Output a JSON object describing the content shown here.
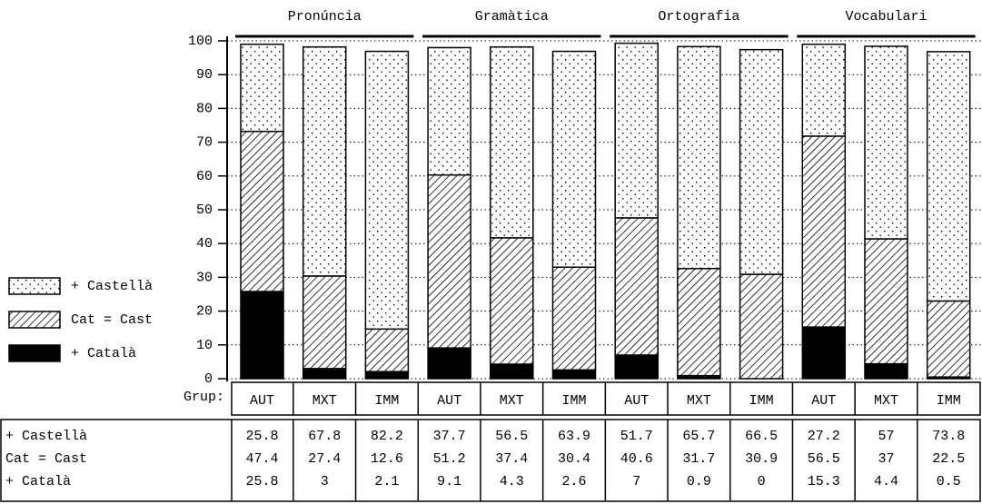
{
  "chart_data": {
    "type": "bar",
    "stacked": true,
    "grid": true,
    "grid_style": "dotted",
    "groups": [
      "Pronúncia",
      "Gramàtica",
      "Ortografia",
      "Vocabulari"
    ],
    "categories": [
      "AUT",
      "MXT",
      "IMM",
      "AUT",
      "MXT",
      "IMM",
      "AUT",
      "MXT",
      "IMM",
      "AUT",
      "MXT",
      "IMM"
    ],
    "x_label": "Grup:",
    "ylim": [
      0,
      100
    ],
    "yticks": [
      0,
      10,
      20,
      30,
      40,
      50,
      60,
      70,
      80,
      90,
      100
    ],
    "series": [
      {
        "name": "+ Castellà",
        "color": "#000000",
        "pattern": "dots",
        "values": [
          25.8,
          67.8,
          82.2,
          37.7,
          56.5,
          63.9,
          51.7,
          65.7,
          66.5,
          27.2,
          57,
          73.8
        ]
      },
      {
        "name": "Cat = Cast",
        "color": "#000000",
        "pattern": "hatch",
        "values": [
          47.4,
          27.4,
          12.6,
          51.2,
          37.4,
          30.4,
          40.6,
          31.7,
          30.9,
          56.5,
          37,
          22.5
        ]
      },
      {
        "name": "+ Català",
        "color": "#000000",
        "pattern": "solid",
        "values": [
          25.8,
          3,
          2.1,
          9.1,
          4.3,
          2.6,
          7,
          0.9,
          0,
          15.3,
          4.4,
          0.5
        ]
      }
    ]
  }
}
